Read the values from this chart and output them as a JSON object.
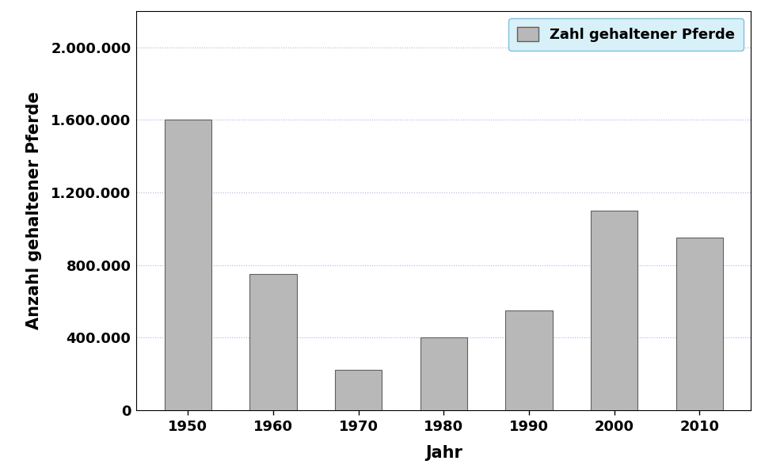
{
  "years": [
    "1950",
    "1960",
    "1970",
    "1980",
    "1990",
    "2000",
    "2010"
  ],
  "values": [
    1600000,
    750000,
    220000,
    400000,
    550000,
    1100000,
    950000
  ],
  "bar_color": "#b8b8b8",
  "bar_edgecolor": "#606060",
  "ylabel": "Anzahl gehaltener Pferde",
  "xlabel": "Jahr",
  "legend_label": "Zahl gehaltener Pferde",
  "ylim": [
    0,
    2200000
  ],
  "yticks": [
    0,
    400000,
    800000,
    1200000,
    1600000,
    2000000
  ],
  "ytick_labels": [
    "0",
    "400.000",
    "800.000",
    "1.200.000",
    "1.600.000",
    "2.000.000"
  ],
  "grid_color": "#b0b0e0",
  "grid_linestyle": ":",
  "background_color": "#ffffff",
  "bar_width": 0.55,
  "legend_fontsize": 13,
  "axis_label_fontsize": 15,
  "tick_fontsize": 13,
  "legend_facecolor": "#d8f0f8",
  "legend_edgecolor": "#80c0e0"
}
